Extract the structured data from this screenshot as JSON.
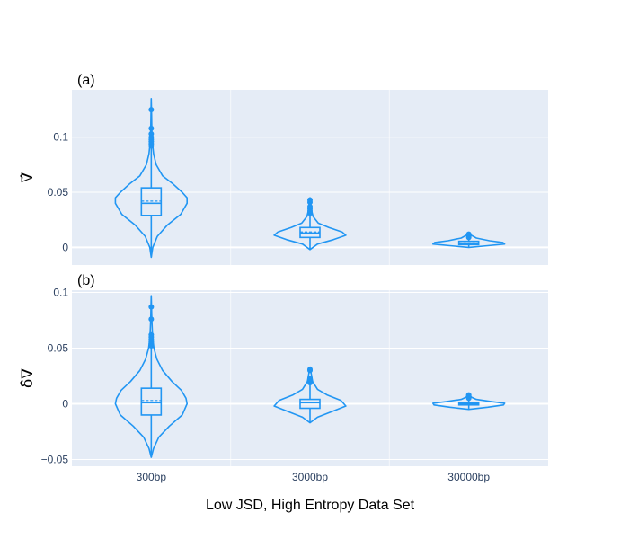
{
  "figure": {
    "xlabel": "Low JSD, High Entropy Data Set",
    "categories": [
      "300bp",
      "3000bp",
      "30000bp"
    ]
  },
  "colors": {
    "series": "#2196f3",
    "plot_bg": "#e5ecf6",
    "grid": "#ffffff"
  },
  "chart_data": [
    {
      "type": "violin",
      "panel": "(a)",
      "ylabel": "∇̂",
      "categories": [
        "300bp",
        "3000bp",
        "30000bp"
      ],
      "ylim": [
        -0.016,
        0.143
      ],
      "yticks": [
        0,
        0.05,
        0.1
      ],
      "ytick_labels": [
        "0",
        "0.05",
        "0.1"
      ],
      "grid": true,
      "violins": [
        {
          "category": "300bp",
          "min": -0.009,
          "q1": 0.029,
          "median": 0.04,
          "mean": 0.042,
          "q3": 0.054,
          "max": 0.135,
          "upper_fence": 0.09,
          "density": [
            [
              -0.009,
              0
            ],
            [
              0.0,
              0.04
            ],
            [
              0.01,
              0.16
            ],
            [
              0.02,
              0.42
            ],
            [
              0.03,
              0.78
            ],
            [
              0.04,
              0.95
            ],
            [
              0.045,
              0.95
            ],
            [
              0.05,
              0.82
            ],
            [
              0.058,
              0.56
            ],
            [
              0.065,
              0.3
            ],
            [
              0.075,
              0.13
            ],
            [
              0.085,
              0.06
            ],
            [
              0.095,
              0.03
            ],
            [
              0.105,
              0.015
            ],
            [
              0.12,
              0.008
            ],
            [
              0.135,
              0
            ]
          ],
          "outliers": [
            0.092,
            0.094,
            0.096,
            0.098,
            0.1,
            0.103,
            0.108,
            0.125
          ]
        },
        {
          "category": "3000bp",
          "min": -0.002,
          "q1": 0.009,
          "median": 0.013,
          "mean": 0.014,
          "q3": 0.018,
          "max": 0.045,
          "upper_fence": 0.03,
          "density": [
            [
              -0.002,
              0
            ],
            [
              0.003,
              0.2
            ],
            [
              0.007,
              0.62
            ],
            [
              0.011,
              0.95
            ],
            [
              0.014,
              0.85
            ],
            [
              0.018,
              0.5
            ],
            [
              0.022,
              0.22
            ],
            [
              0.028,
              0.08
            ],
            [
              0.035,
              0.03
            ],
            [
              0.045,
              0
            ]
          ],
          "outliers": [
            0.031,
            0.033,
            0.035,
            0.037,
            0.041,
            0.043
          ]
        },
        {
          "category": "30000bp",
          "min": 0.0,
          "q1": 0.0025,
          "median": 0.0035,
          "mean": 0.004,
          "q3": 0.0055,
          "max": 0.013,
          "upper_fence": 0.009,
          "density": [
            [
              0.0,
              0
            ],
            [
              0.0015,
              0.5
            ],
            [
              0.003,
              0.95
            ],
            [
              0.0045,
              0.9
            ],
            [
              0.006,
              0.55
            ],
            [
              0.0085,
              0.2
            ],
            [
              0.011,
              0.07
            ],
            [
              0.013,
              0
            ]
          ],
          "outliers": [
            0.009,
            0.01,
            0.011,
            0.012
          ]
        }
      ]
    },
    {
      "type": "violin",
      "panel": "(b)",
      "ylabel": "δ̂∇",
      "categories": [
        "300bp",
        "3000bp",
        "30000bp"
      ],
      "ylim": [
        -0.056,
        0.102
      ],
      "yticks": [
        -0.05,
        0,
        0.05,
        0.1
      ],
      "ytick_labels": [
        "−0.05",
        "0",
        "0.05",
        "0.1"
      ],
      "grid": true,
      "violins": [
        {
          "category": "300bp",
          "min": -0.048,
          "q1": -0.01,
          "median": 0.001,
          "mean": 0.003,
          "q3": 0.014,
          "max": 0.097,
          "upper_fence": 0.05,
          "density": [
            [
              -0.048,
              0
            ],
            [
              -0.04,
              0.06
            ],
            [
              -0.03,
              0.2
            ],
            [
              -0.02,
              0.48
            ],
            [
              -0.01,
              0.82
            ],
            [
              0.0,
              0.95
            ],
            [
              0.005,
              0.92
            ],
            [
              0.012,
              0.8
            ],
            [
              0.02,
              0.55
            ],
            [
              0.03,
              0.3
            ],
            [
              0.04,
              0.15
            ],
            [
              0.05,
              0.07
            ],
            [
              0.06,
              0.035
            ],
            [
              0.075,
              0.015
            ],
            [
              0.097,
              0
            ]
          ],
          "outliers": [
            0.052,
            0.054,
            0.056,
            0.058,
            0.06,
            0.062,
            0.076,
            0.087
          ]
        },
        {
          "category": "3000bp",
          "min": -0.017,
          "q1": -0.004,
          "median": 0.001,
          "mean": 0.001,
          "q3": 0.004,
          "max": 0.033,
          "upper_fence": 0.018,
          "density": [
            [
              -0.017,
              0
            ],
            [
              -0.012,
              0.2
            ],
            [
              -0.006,
              0.65
            ],
            [
              -0.002,
              0.95
            ],
            [
              0.003,
              0.82
            ],
            [
              0.008,
              0.45
            ],
            [
              0.013,
              0.2
            ],
            [
              0.02,
              0.07
            ],
            [
              0.033,
              0
            ]
          ],
          "outliers": [
            0.019,
            0.02,
            0.021,
            0.022,
            0.023,
            0.03,
            0.031
          ]
        },
        {
          "category": "30000bp",
          "min": -0.005,
          "q1": -0.001,
          "median": 0.0,
          "mean": 0.0,
          "q3": 0.001,
          "max": 0.009,
          "upper_fence": 0.004,
          "density": [
            [
              -0.005,
              0
            ],
            [
              -0.003,
              0.5
            ],
            [
              -0.001,
              0.92
            ],
            [
              0.0005,
              0.95
            ],
            [
              0.002,
              0.6
            ],
            [
              0.004,
              0.2
            ],
            [
              0.006,
              0.07
            ],
            [
              0.009,
              0
            ]
          ],
          "outliers": [
            0.005,
            0.006,
            0.007,
            0.008
          ]
        }
      ]
    }
  ]
}
